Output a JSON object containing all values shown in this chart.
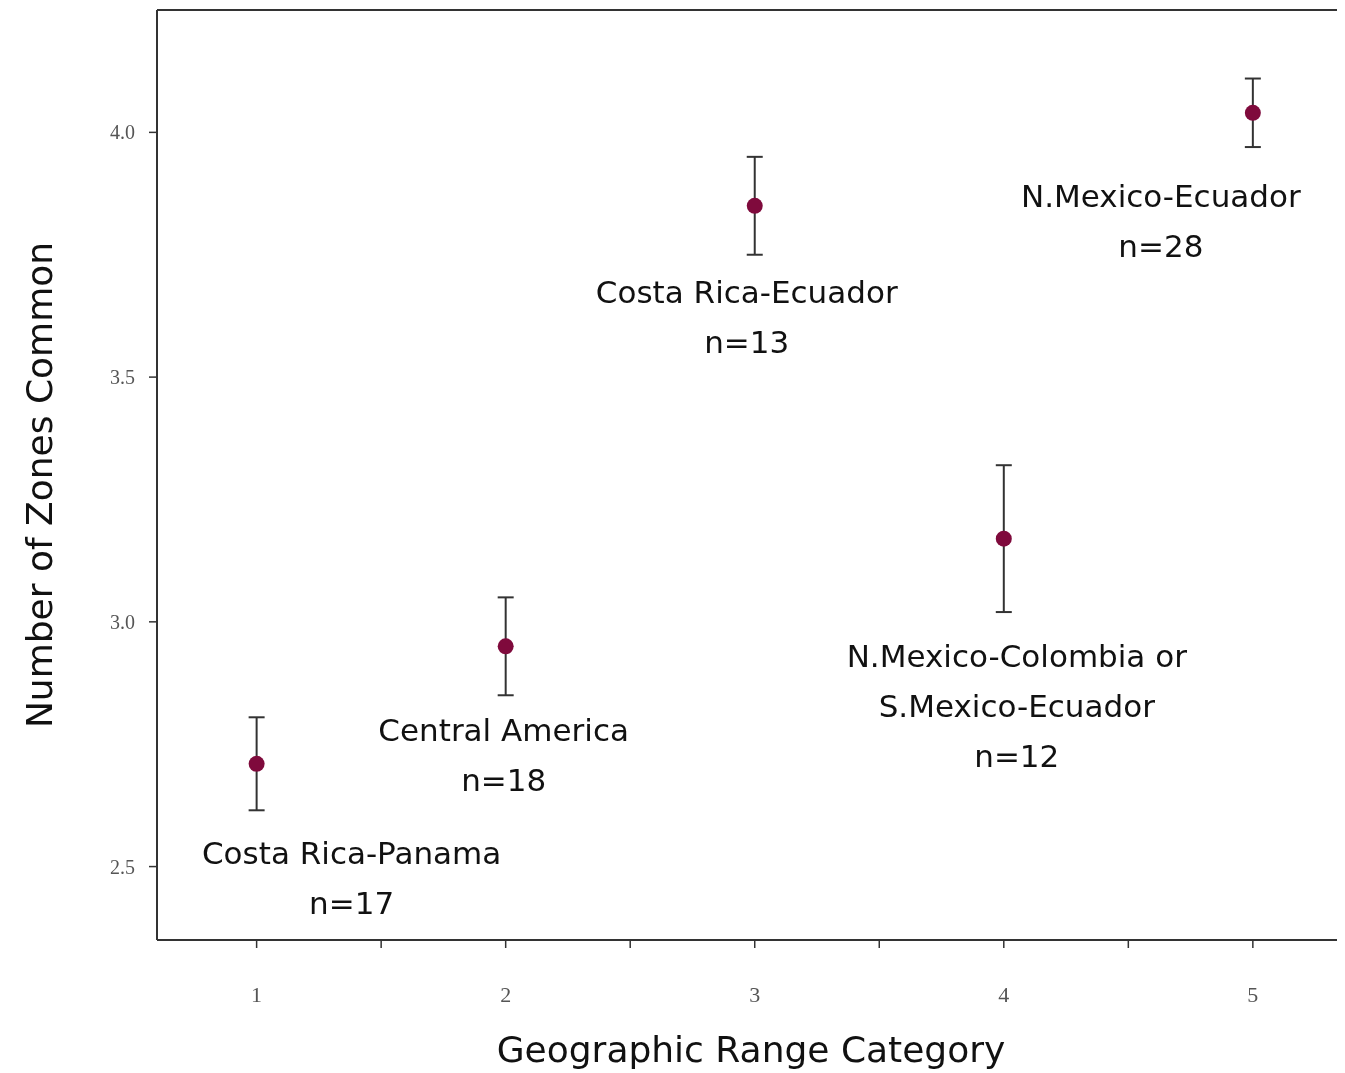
{
  "chart_data": {
    "type": "scatter",
    "xlabel": "Geographic Range Category",
    "ylabel": "Number of Zones Common",
    "x": [
      1,
      2,
      3,
      4,
      5
    ],
    "values": [
      2.71,
      2.95,
      3.85,
      3.17,
      4.04
    ],
    "errors": [
      0.095,
      0.1,
      0.1,
      0.15,
      0.07
    ],
    "color": "#7f0a3c",
    "marker": "circle",
    "grid": false,
    "xlim": [
      0.6,
      5.37
    ],
    "ylim": [
      2.35,
      4.25
    ],
    "xticks": [
      1,
      {
        "value": 1.5,
        "label": null
      },
      2,
      {
        "value": 2.5,
        "label": null
      },
      3,
      {
        "value": 3.5,
        "label": null
      },
      4,
      {
        "value": 4.5,
        "label": null
      },
      5
    ],
    "yticks": [
      2.5,
      3.5,
      {
        "value": 3.0,
        "label": "3.0"
      },
      {
        "value": 4.0,
        "label": "4.0"
      }
    ],
    "annotations": [
      "Costa Rica-Panama\nn=17",
      "Central America\nn=18",
      "Costa Rica-Ecuador\nn=13",
      "N.Mexico-Colombia or\nS.Mexico-Ecuador\nn=12",
      "N.Mexico-Ecuador\nn=28"
    ]
  }
}
